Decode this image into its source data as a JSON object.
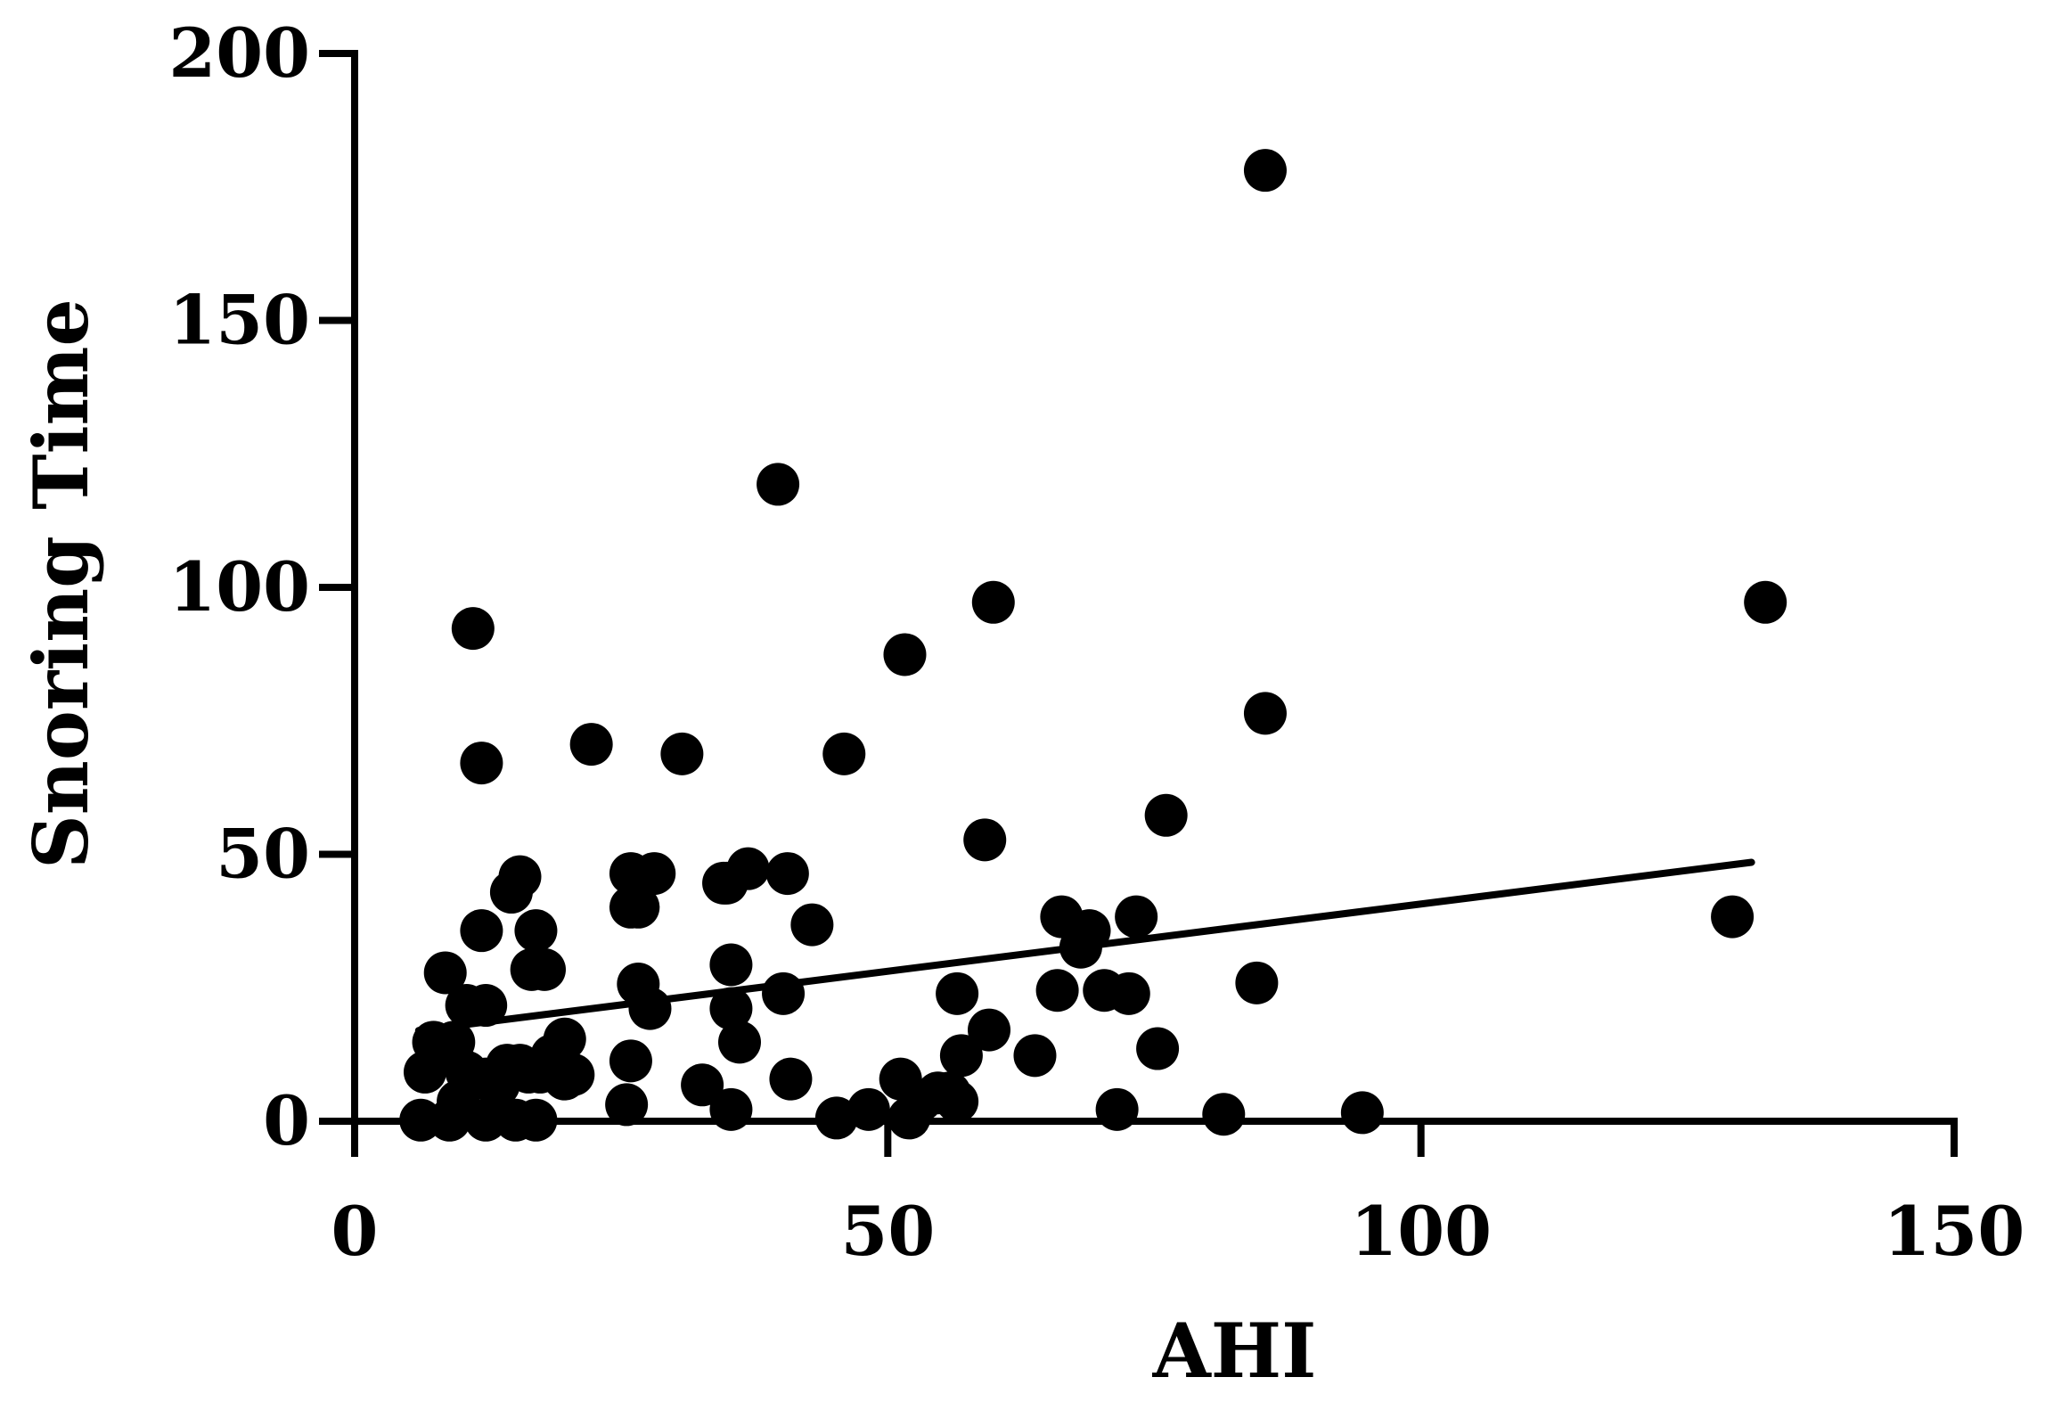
{
  "chart_data": {
    "type": "scatter",
    "title": "",
    "xlabel": "AHI",
    "ylabel": "Snoring Time",
    "xlim": [
      0,
      150
    ],
    "ylim": [
      0,
      200
    ],
    "xticks": [
      0,
      50,
      100,
      150
    ],
    "yticks": [
      0,
      50,
      100,
      150,
      200
    ],
    "xtick_labels": [
      "0",
      "50",
      "100",
      "150"
    ],
    "ytick_labels": [
      "0",
      "50",
      "100",
      "150",
      "200"
    ],
    "grid": false,
    "legend": "none",
    "marker_color": "#000000",
    "series": [
      {
        "name": "",
        "points": [
          [
            11.1,
            92.3
          ],
          [
            11.9,
            67.1
          ],
          [
            22.2,
            70.6
          ],
          [
            30.7,
            68.8
          ],
          [
            39.7,
            119.3
          ],
          [
            45.9,
            68.8
          ],
          [
            51.6,
            87.4
          ],
          [
            59.9,
            97.2
          ],
          [
            85.4,
            178.1
          ],
          [
            85.4,
            76.4
          ],
          [
            76.1,
            57.3
          ],
          [
            59.1,
            52.7
          ],
          [
            132.3,
            97.2
          ],
          [
            129.2,
            38.3
          ],
          [
            84.6,
            25.9
          ],
          [
            66.3,
            38.3
          ],
          [
            73.3,
            38.3
          ],
          [
            68.9,
            35.7
          ],
          [
            68.1,
            32.6
          ],
          [
            65.9,
            24.5
          ],
          [
            70.3,
            24.5
          ],
          [
            72.6,
            23.9
          ],
          [
            75.3,
            13.6
          ],
          [
            63.8,
            12.3
          ],
          [
            59.5,
            17.1
          ],
          [
            56.5,
            23.9
          ],
          [
            56.9,
            12.3
          ],
          [
            56.5,
            3.7
          ],
          [
            55.8,
            5.3
          ],
          [
            54.7,
            5.3
          ],
          [
            53.1,
            3.9
          ],
          [
            51.2,
            7.9
          ],
          [
            52.0,
            0.6
          ],
          [
            48.2,
            2.2
          ],
          [
            45.2,
            0.6
          ],
          [
            42.9,
            36.8
          ],
          [
            40.6,
            46.4
          ],
          [
            40.9,
            7.9
          ],
          [
            40.2,
            23.9
          ],
          [
            36.9,
            47.3
          ],
          [
            34.6,
            44.6
          ],
          [
            34.9,
            44.6
          ],
          [
            35.3,
            29.3
          ],
          [
            35.3,
            21.1
          ],
          [
            36.1,
            14.8
          ],
          [
            35.3,
            2.2
          ],
          [
            32.6,
            6.8
          ],
          [
            28.1,
            46.4
          ],
          [
            25.9,
            46.4
          ],
          [
            26.6,
            40.1
          ],
          [
            25.9,
            40.1
          ],
          [
            26.6,
            25.7
          ],
          [
            27.7,
            21.1
          ],
          [
            25.9,
            11.3
          ],
          [
            25.5,
            3.1
          ],
          [
            19.7,
            15.4
          ],
          [
            19.7,
            7.9
          ],
          [
            20.5,
            8.7
          ],
          [
            18.5,
            12.3
          ],
          [
            17.4,
            9.2
          ],
          [
            17.0,
            35.7
          ],
          [
            16.6,
            28.4
          ],
          [
            17.8,
            28.4
          ],
          [
            15.5,
            45.8
          ],
          [
            14.7,
            42.9
          ],
          [
            11.9,
            35.7
          ],
          [
            8.5,
            27.8
          ],
          [
            10.5,
            21.7
          ],
          [
            12.3,
            21.7
          ],
          [
            6.6,
            9.2
          ],
          [
            7.4,
            14.8
          ],
          [
            8.5,
            13.3
          ],
          [
            9.3,
            14.8
          ],
          [
            10.5,
            9.2
          ],
          [
            12.3,
            7.9
          ],
          [
            13.5,
            6.8
          ],
          [
            14.3,
            10.5
          ],
          [
            15.5,
            10.5
          ],
          [
            16.3,
            9.2
          ],
          [
            6.2,
            0.2
          ],
          [
            8.9,
            0.2
          ],
          [
            12.3,
            0.2
          ],
          [
            15.1,
            0.2
          ],
          [
            17.0,
            0.2
          ],
          [
            9.7,
            3.7
          ],
          [
            71.5,
            2.2
          ],
          [
            81.5,
            1.3
          ],
          [
            94.5,
            1.6
          ]
        ]
      }
    ],
    "fit_line": {
      "type": "linear",
      "x_range": [
        6.0,
        131.0
      ],
      "y_start": 17.0,
      "y_end": 48.5
    }
  }
}
